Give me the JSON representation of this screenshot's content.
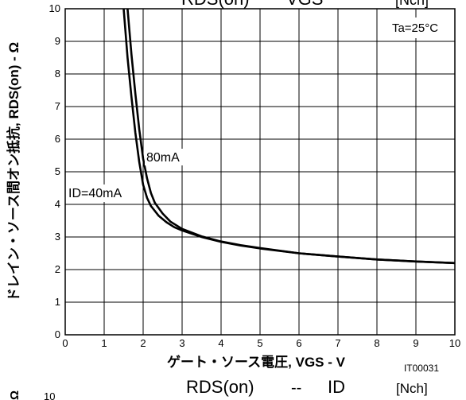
{
  "chart_data": {
    "type": "line",
    "title_top_partial": {
      "left": "RDS(on)",
      "middle": "VGS",
      "right": "[Nch]"
    },
    "ylabel": "ドレイン・ソース間オン抵抗, RDS(on) - Ω",
    "xlabel": "ゲート・ソース電圧, VGS - V",
    "figure_code": "IT00031",
    "condition": "Ta=25°C",
    "xlim": [
      0,
      10
    ],
    "ylim": [
      0,
      10
    ],
    "x_ticks": [
      "0",
      "1",
      "2",
      "3",
      "4",
      "5",
      "6",
      "7",
      "8",
      "9",
      "10"
    ],
    "y_ticks": [
      "0",
      "1",
      "2",
      "3",
      "4",
      "5",
      "6",
      "7",
      "8",
      "9",
      "10"
    ],
    "grid": true,
    "annotations": [
      "80mA",
      "ID=40mA"
    ],
    "series": [
      {
        "name": "ID=40mA",
        "points": [
          [
            1.5,
            10.0
          ],
          [
            1.6,
            8.5
          ],
          [
            1.7,
            7.3
          ],
          [
            1.8,
            6.2
          ],
          [
            1.9,
            5.3
          ],
          [
            2.0,
            4.6
          ],
          [
            2.1,
            4.2
          ],
          [
            2.2,
            3.95
          ],
          [
            2.4,
            3.65
          ],
          [
            2.6,
            3.45
          ],
          [
            2.8,
            3.3
          ],
          [
            3.0,
            3.2
          ],
          [
            3.5,
            3.0
          ],
          [
            4.0,
            2.85
          ],
          [
            4.5,
            2.74
          ],
          [
            5.0,
            2.65
          ],
          [
            6.0,
            2.5
          ],
          [
            7.0,
            2.4
          ],
          [
            8.0,
            2.31
          ],
          [
            9.0,
            2.25
          ],
          [
            10.0,
            2.2
          ]
        ]
      },
      {
        "name": "80mA",
        "points": [
          [
            1.6,
            10.0
          ],
          [
            1.7,
            8.6
          ],
          [
            1.8,
            7.4
          ],
          [
            1.9,
            6.3
          ],
          [
            2.0,
            5.4
          ],
          [
            2.1,
            4.8
          ],
          [
            2.2,
            4.35
          ],
          [
            2.3,
            4.05
          ],
          [
            2.5,
            3.72
          ],
          [
            2.7,
            3.47
          ],
          [
            3.0,
            3.25
          ],
          [
            3.5,
            3.02
          ],
          [
            4.0,
            2.86
          ],
          [
            4.5,
            2.75
          ],
          [
            5.0,
            2.66
          ],
          [
            6.0,
            2.5
          ],
          [
            7.0,
            2.4
          ],
          [
            8.0,
            2.31
          ],
          [
            9.0,
            2.25
          ],
          [
            10.0,
            2.2
          ]
        ]
      }
    ],
    "bottom_title_partial": {
      "left": "RDS(on)",
      "middle": "--",
      "right": "ID",
      "tag": "[Nch]",
      "next_y_tick": "10",
      "unit": "Ω"
    }
  }
}
